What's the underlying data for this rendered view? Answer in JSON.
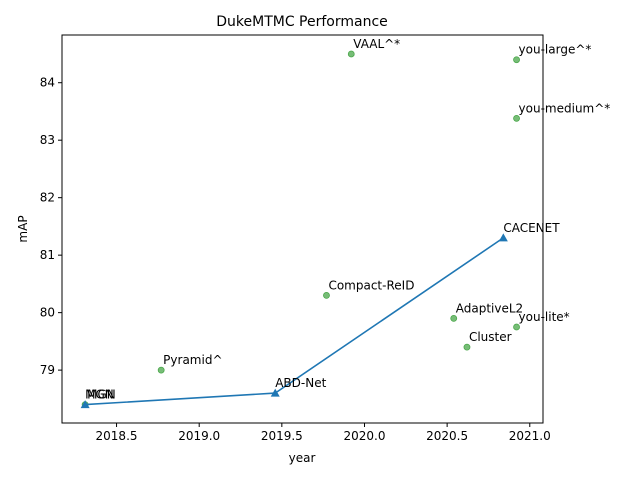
{
  "chart_data": {
    "type": "scatter",
    "title": "DukeMTMC Performance",
    "xlabel": "year",
    "ylabel": "mAP",
    "xlim": [
      2018.17,
      2021.08
    ],
    "ylim": [
      78.08,
      84.83
    ],
    "xticks": [
      "2018.5",
      "2019.0",
      "2019.5",
      "2020.0",
      "2020.5",
      "2021.0"
    ],
    "xtick_values": [
      2018.5,
      2019.0,
      2019.5,
      2020.0,
      2020.5,
      2021.0
    ],
    "yticks": [
      "79",
      "80",
      "81",
      "82",
      "83",
      "84"
    ],
    "ytick_values": [
      79,
      80,
      81,
      82,
      83,
      84
    ],
    "grid": false,
    "series": [
      {
        "kind": "scatter",
        "color": "#4aa74a",
        "points": [
          {
            "label": "MGN",
            "x": 2018.31,
            "y": 78.4
          },
          {
            "label": "Pyramid^",
            "x": 2018.77,
            "y": 79.0
          },
          {
            "label": "Compact-ReID",
            "x": 2019.77,
            "y": 80.3
          },
          {
            "label": "VAAL^*",
            "x": 2019.92,
            "y": 84.5
          },
          {
            "label": "AdaptiveL2",
            "x": 2020.54,
            "y": 79.9
          },
          {
            "label": "Cluster",
            "x": 2020.62,
            "y": 79.4
          },
          {
            "label": "you-large^*",
            "x": 2020.92,
            "y": 84.4
          },
          {
            "label": "you-medium^*",
            "x": 2020.92,
            "y": 83.38
          },
          {
            "label": "you-lite*",
            "x": 2020.92,
            "y": 79.75
          }
        ]
      },
      {
        "kind": "line",
        "color": "#1f77b4",
        "points": [
          {
            "label": "MGN",
            "x": 2018.31,
            "y": 78.4
          },
          {
            "label": "ABD-Net",
            "x": 2019.46,
            "y": 78.6
          },
          {
            "label": "CACENET",
            "x": 2020.84,
            "y": 81.3
          }
        ]
      }
    ]
  }
}
